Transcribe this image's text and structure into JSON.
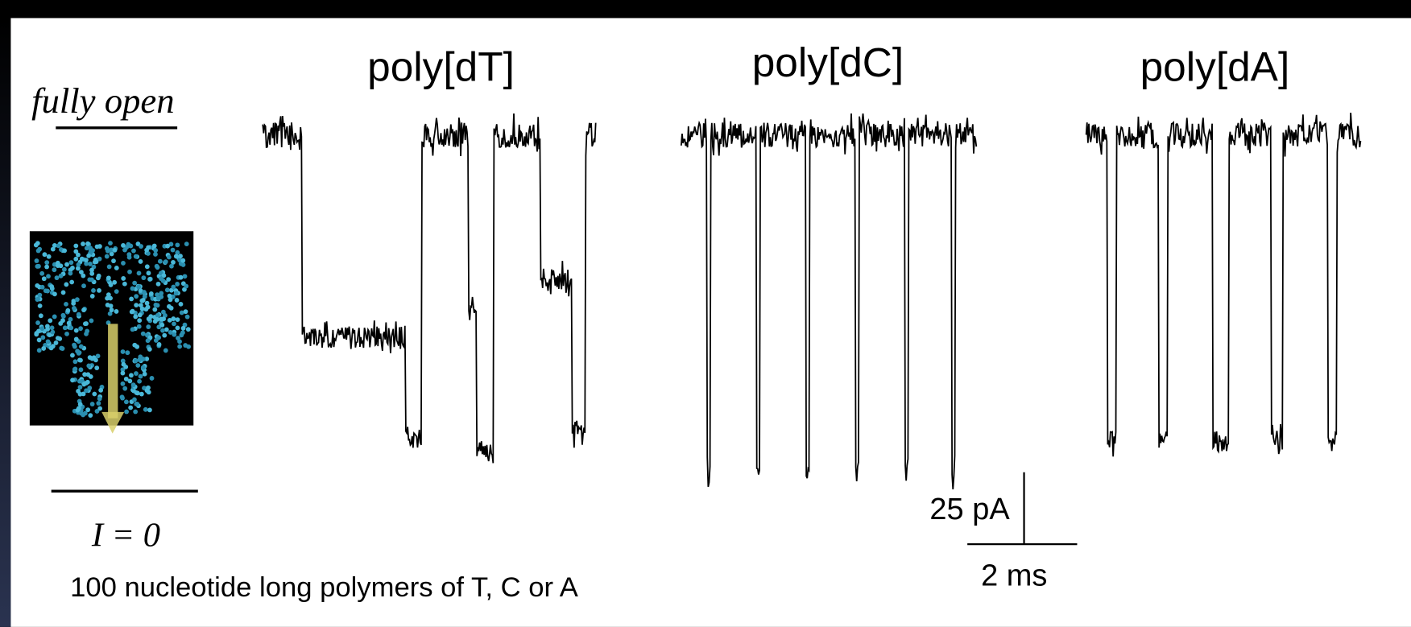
{
  "labels": {
    "open_level": "fully open",
    "zero_level": "I = 0",
    "caption": "100 nucleotide long polymers of T, C or A"
  },
  "traces": [
    {
      "title": "poly[dT]"
    },
    {
      "title": "poly[dC]"
    },
    {
      "title": "poly[dA]"
    }
  ],
  "scale_bar": {
    "current": "25 pA",
    "time": "2 ms"
  }
}
